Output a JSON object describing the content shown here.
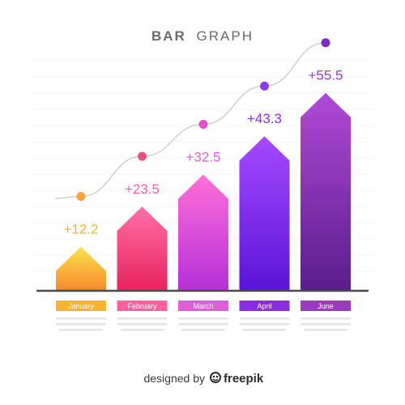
{
  "chart_data": {
    "type": "bar",
    "title_bold": "BAR",
    "title_light": "GRAPH",
    "categories": [
      "January",
      "February",
      "March",
      "April",
      "June"
    ],
    "values": [
      12.2,
      23.5,
      32.5,
      43.3,
      55.5
    ],
    "value_labels": [
      "+12.2",
      "+23.5",
      "+32.5",
      "+43.3",
      "+55.5"
    ],
    "ylim": [
      0,
      60
    ],
    "grid": false,
    "trend_line": true,
    "gradients": [
      [
        "#fde24f",
        "#f78a2b"
      ],
      [
        "#ff6fa8",
        "#e8245e"
      ],
      [
        "#ff6fd8",
        "#b530d8"
      ],
      [
        "#a64bff",
        "#5a14d8"
      ],
      [
        "#b04ad6",
        "#5a1d8c"
      ]
    ],
    "label_colors": [
      "#f7b32b",
      "#ff5f9e",
      "#e25ed8",
      "#8b2be2",
      "#9b3bc4"
    ],
    "dot_colors": [
      "#f7a43b",
      "#ee4f86",
      "#e34fc9",
      "#8a3cf0",
      "#7a2cc8"
    ]
  },
  "footer": {
    "prefix": "designed by",
    "brand": "freepik"
  }
}
